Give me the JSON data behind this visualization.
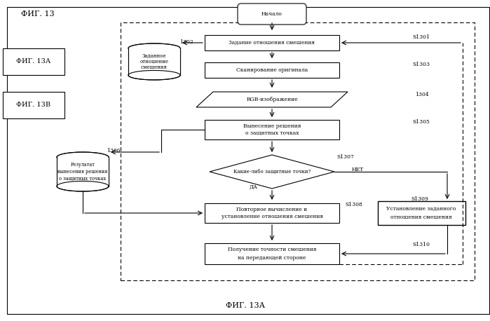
{
  "fig_title": "ФИГ. 13",
  "bottom_label": "ФИГ. 13А",
  "background_color": "#ffffff",
  "text_color": "#000000",
  "fig_size": [
    6.99,
    4.58
  ],
  "dpi": 100,
  "start": "Начало",
  "s1301": "S1301",
  "s1303": "S1303",
  "s1304": "1304",
  "s1305": "S1305",
  "s1306": "1306",
  "s1307": "S1307",
  "s1308": "S1308",
  "s1309": "S1309",
  "s1310": "S1310",
  "label1302": "1302",
  "box1301": "Задание отношения смешения",
  "box1303": "Сканирование оригинала",
  "box1304": "RGB-изображение",
  "box1305_1": "Вынесение решения",
  "box1305_2": "о защитных точках",
  "box1307": "Какие-либо защитные точки?",
  "box1308_1": "Повторное вычисление и",
  "box1308_2": "установление отношения смешения",
  "box1309_1": "Установление заданного",
  "box1309_2": "отношения смешения",
  "box1310_1": "Получение точности смешения",
  "box1310_2": "на передающей стороне",
  "db1302_1": "Заданное",
  "db1302_2": "отношение",
  "db1302_3": "смешения",
  "db1306_1": "Результат",
  "db1306_2": "вынесения решения",
  "db1306_3": "о защитных точках",
  "fig13a_label": "ФИГ. 13А",
  "fig13b_label": "ФИГ. 13В",
  "yes_label": "ДА",
  "no_label": "НЕТ"
}
